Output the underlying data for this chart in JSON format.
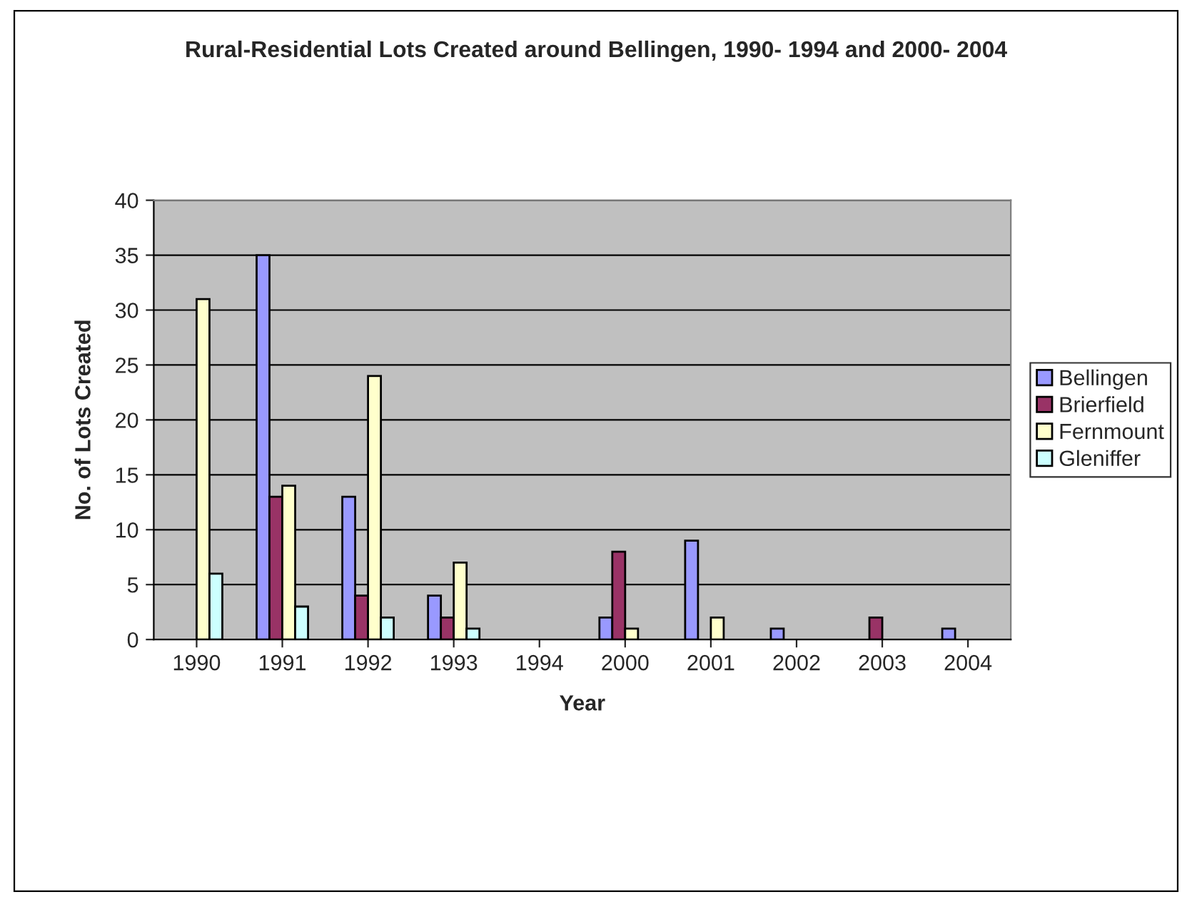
{
  "chart_data": {
    "type": "bar",
    "title": "Rural-Residential Lots Created around Bellingen, 1990- 1994 and 2000- 2004",
    "xlabel": "Year",
    "ylabel": "No. of Lots Created",
    "categories": [
      "1990",
      "1991",
      "1992",
      "1993",
      "1994",
      "2000",
      "2001",
      "2002",
      "2003",
      "2004"
    ],
    "series": [
      {
        "name": "Bellingen",
        "color": "#9999ff",
        "values": [
          null,
          35,
          13,
          4,
          null,
          2,
          9,
          1,
          null,
          1
        ]
      },
      {
        "name": "Brierfield",
        "color": "#993366",
        "values": [
          null,
          13,
          4,
          2,
          null,
          8,
          null,
          null,
          2,
          null
        ]
      },
      {
        "name": "Fernmount",
        "color": "#ffffcc",
        "values": [
          31,
          14,
          24,
          7,
          null,
          1,
          2,
          null,
          null,
          null
        ]
      },
      {
        "name": "Gleniffer",
        "color": "#ccffff",
        "values": [
          6,
          3,
          2,
          1,
          null,
          null,
          null,
          null,
          null,
          null
        ]
      }
    ],
    "ylim": [
      0,
      40
    ],
    "yticks": [
      0,
      5,
      10,
      15,
      20,
      25,
      30,
      35,
      40
    ],
    "grid": "y",
    "legend": "right"
  }
}
